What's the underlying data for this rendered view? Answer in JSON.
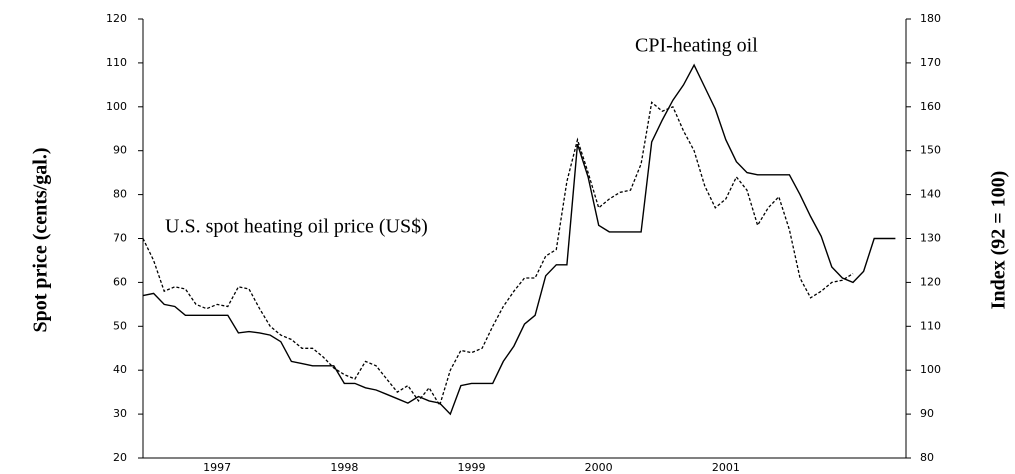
{
  "chart_data": {
    "type": "line",
    "y_label": "Spot price (cents/gal.)",
    "y2_label": "Index (92 = 100)",
    "annotations": [
      "CPI-heating oil",
      "U.S. spot heating oil price (US$)"
    ],
    "categories": [
      null,
      null,
      null,
      null,
      null,
      null,
      null,
      "1997",
      null,
      null,
      null,
      null,
      null,
      null,
      null,
      null,
      null,
      null,
      null,
      "1998",
      null,
      null,
      null,
      null,
      null,
      null,
      null,
      null,
      null,
      null,
      null,
      "1999",
      null,
      null,
      null,
      null,
      null,
      null,
      null,
      null,
      null,
      null,
      null,
      "2000",
      null,
      null,
      null,
      null,
      null,
      null,
      null,
      null,
      null,
      null,
      null,
      "2001",
      null,
      null,
      null,
      null,
      null,
      null,
      null,
      null,
      null,
      null,
      null,
      null,
      null,
      null,
      null,
      null,
      null
    ],
    "series": [
      {
        "name": "U.S. spot heating oil price (US$)",
        "color": "#000000",
        "dashed": true,
        "values": [
          70,
          65,
          58,
          59,
          58.5,
          55,
          54,
          55,
          54.5,
          59,
          58.5,
          54,
          50,
          48,
          47,
          45,
          45,
          43,
          40.5,
          39,
          38,
          42,
          41,
          38,
          35,
          36.5,
          33,
          36,
          32,
          40,
          44.5,
          44,
          45,
          50,
          54.5,
          58,
          61,
          61,
          66,
          67.5,
          83,
          92.5,
          85,
          77,
          79,
          80.5,
          81,
          87,
          101,
          99,
          100,
          94.5,
          90,
          82,
          77,
          79,
          84,
          81,
          73,
          77,
          79.5,
          72,
          61,
          56.5,
          58,
          60,
          60.5,
          62,
          null,
          null,
          null,
          null,
          null
        ]
      },
      {
        "name": "CPI-heating oil",
        "color": "#000000",
        "dashed": false,
        "axis": "y2",
        "values": [
          117,
          117.5,
          115,
          114.5,
          112.5,
          112.5,
          112.5,
          112.5,
          112.5,
          108.5,
          108.8,
          108.5,
          108,
          106.5,
          102,
          101.5,
          101,
          101,
          101,
          97,
          97,
          96,
          95.5,
          94.5,
          93.5,
          92.5,
          94,
          93,
          92.5,
          90,
          96.5,
          97,
          97,
          97,
          102,
          105.5,
          110.5,
          112.5,
          121.5,
          124,
          124,
          151.5,
          144,
          133,
          131.5,
          131.5,
          131.5,
          131.5,
          152,
          157,
          161.5,
          165,
          169.5,
          164.5,
          159.5,
          152.5,
          147.5,
          145,
          144.5,
          144.5,
          144.5,
          144.5,
          140,
          135,
          130.5,
          123.5,
          121,
          120,
          122.5,
          130,
          130,
          130,
          null
        ]
      }
    ],
    "ylim": [
      20,
      120
    ],
    "yticks": [
      20,
      30,
      40,
      50,
      60,
      70,
      80,
      90,
      100,
      110,
      120
    ],
    "y2lim": [
      80,
      180
    ],
    "y2ticks": [
      80,
      90,
      100,
      110,
      120,
      130,
      140,
      150,
      160,
      170,
      180
    ],
    "grid": false
  }
}
